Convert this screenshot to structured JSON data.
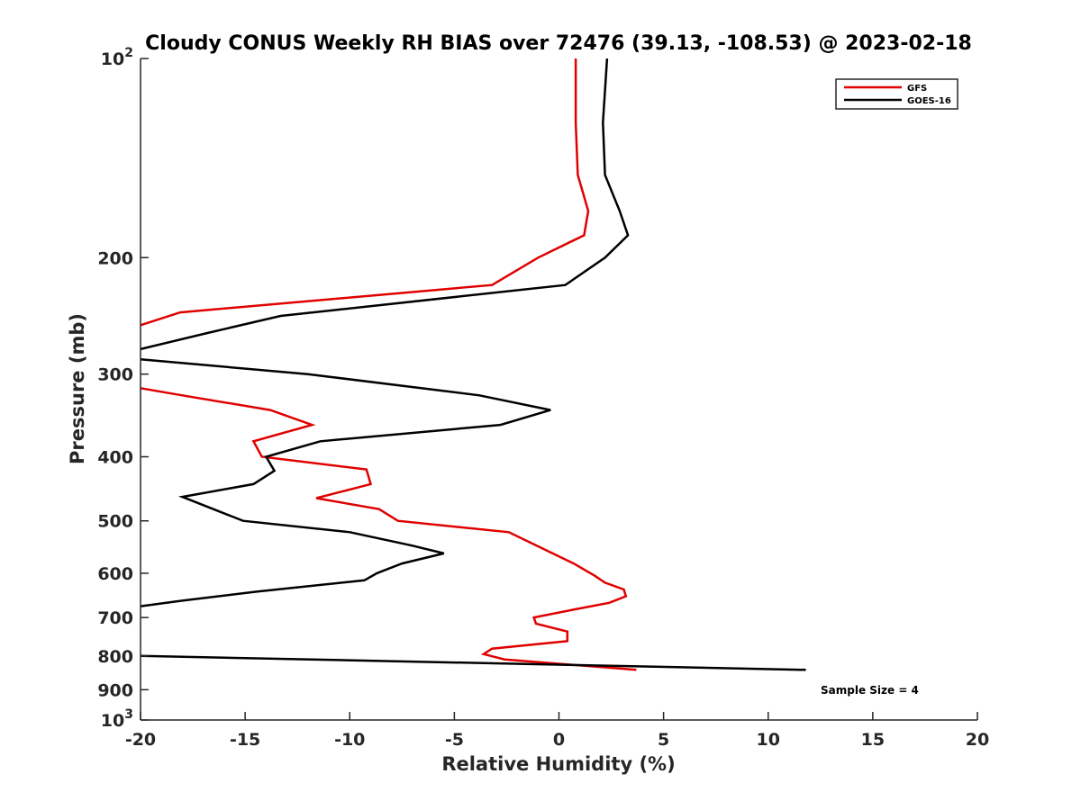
{
  "chart_data": {
    "type": "line",
    "title": "Cloudy CONUS Weekly RH BIAS over 72476 (39.13, -108.53) @ 2023-02-18",
    "xlabel": "Relative Humidity (%)",
    "ylabel": "Pressure (mb)",
    "xlim": [
      -20,
      20
    ],
    "ylim": [
      100,
      1000
    ],
    "y_scale": "log",
    "y_reversed": true,
    "grid": false,
    "legend_position": "top-right",
    "x_ticks": [
      "-20",
      "-15",
      "-10",
      "-5",
      "0",
      "5",
      "10",
      "15",
      "20"
    ],
    "y_tick_labels": [
      {
        "value": 100,
        "base": "10",
        "exp": "2"
      },
      {
        "value": 200,
        "label": "200"
      },
      {
        "value": 300,
        "label": "300"
      },
      {
        "value": 400,
        "label": "400"
      },
      {
        "value": 500,
        "label": "500"
      },
      {
        "value": 600,
        "label": "600"
      },
      {
        "value": 700,
        "label": "700"
      },
      {
        "value": 800,
        "label": "800"
      },
      {
        "value": 900,
        "label": "900"
      },
      {
        "value": 1000,
        "base": "10",
        "exp": "3"
      }
    ],
    "series": [
      {
        "name": "GFS",
        "color": "#e00000",
        "points": [
          [
            0.8,
            100
          ],
          [
            0.8,
            125
          ],
          [
            0.9,
            150
          ],
          [
            1.4,
            170
          ],
          [
            1.2,
            185
          ],
          [
            -1.0,
            200
          ],
          [
            -3.2,
            220
          ],
          [
            -18.1,
            242
          ],
          [
            -20.0,
            253
          ],
          [
            null,
            275
          ],
          [
            -20.0,
            315
          ],
          [
            -18.0,
            323
          ],
          [
            -13.8,
            340
          ],
          [
            -11.8,
            358
          ],
          [
            -14.6,
            379
          ],
          [
            -14.2,
            400
          ],
          [
            -9.2,
            418
          ],
          [
            -9.0,
            440
          ],
          [
            -11.6,
            462
          ],
          [
            -8.6,
            480
          ],
          [
            -7.7,
            500
          ],
          [
            -2.4,
            520
          ],
          [
            -0.8,
            550
          ],
          [
            0.7,
            580
          ],
          [
            1.7,
            605
          ],
          [
            2.2,
            620
          ],
          [
            3.1,
            635
          ],
          [
            3.2,
            650
          ],
          [
            2.4,
            665
          ],
          [
            0.8,
            680
          ],
          [
            -1.2,
            700
          ],
          [
            -1.1,
            715
          ],
          [
            0.4,
            735
          ],
          [
            0.4,
            760
          ],
          [
            -3.2,
            780
          ],
          [
            -3.6,
            795
          ],
          [
            -2.6,
            810
          ],
          [
            3.7,
            840
          ]
        ]
      },
      {
        "name": "GOES-16",
        "color": "#000000",
        "points": [
          [
            2.3,
            100
          ],
          [
            2.1,
            125
          ],
          [
            2.2,
            150
          ],
          [
            2.9,
            170
          ],
          [
            3.3,
            185
          ],
          [
            2.2,
            200
          ],
          [
            0.3,
            220
          ],
          [
            -13.3,
            245
          ],
          [
            -16.8,
            260
          ],
          [
            -20.0,
            275
          ],
          [
            null,
            280
          ],
          [
            -20.0,
            285
          ],
          [
            -12.0,
            300
          ],
          [
            -3.8,
            323
          ],
          [
            -0.4,
            340
          ],
          [
            -2.8,
            358
          ],
          [
            -11.4,
            379
          ],
          [
            -14.0,
            400
          ],
          [
            -13.6,
            420
          ],
          [
            -14.6,
            440
          ],
          [
            -18.0,
            460
          ],
          [
            -15.1,
            500
          ],
          [
            -10.0,
            520
          ],
          [
            -7.0,
            545
          ],
          [
            -5.5,
            560
          ],
          [
            -7.5,
            580
          ],
          [
            -8.7,
            600
          ],
          [
            -9.3,
            615
          ],
          [
            -14.5,
            640
          ],
          [
            -18.0,
            660
          ],
          [
            -20.0,
            673
          ],
          [
            null,
            740
          ],
          [
            -20.0,
            800
          ],
          [
            11.8,
            840
          ]
        ]
      }
    ],
    "annotations": [
      "Sample Size = 4"
    ]
  }
}
